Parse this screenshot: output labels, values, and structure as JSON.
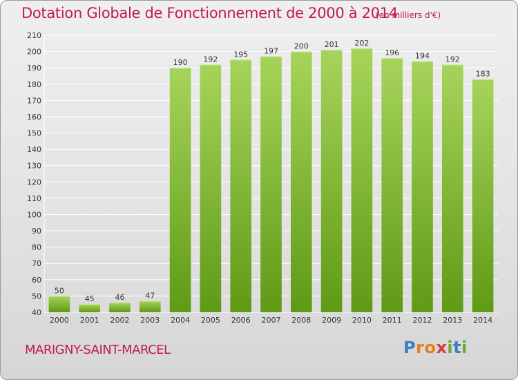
{
  "title": "Dotation Globale de Fonctionnement de 2000 à 2014",
  "subtitle": "(en milliers d'€)",
  "commune": "MARIGNY-SAINT-MARCEL",
  "logo": {
    "text": "Proxiti",
    "letters": [
      "P",
      "r",
      "o",
      "x",
      "i",
      "t",
      "i"
    ],
    "colors": [
      "#3a7fc1",
      "#e87d1e",
      "#e87d1e",
      "#d93a3a",
      "#6aa535",
      "#3a7fc1",
      "#6aa535"
    ]
  },
  "colors": {
    "title": "#c0185d",
    "bar_top": "#a6d45a",
    "bar_bottom": "#5f9a16",
    "grid": "#ffffff",
    "axis_text": "#333333"
  },
  "chart_data": {
    "type": "bar",
    "categories": [
      "2000",
      "2001",
      "2002",
      "2003",
      "2004",
      "2005",
      "2006",
      "2007",
      "2008",
      "2009",
      "2010",
      "2011",
      "2012",
      "2013",
      "2014"
    ],
    "values": [
      50,
      45,
      46,
      47,
      190,
      192,
      195,
      197,
      200,
      201,
      202,
      196,
      194,
      192,
      183
    ],
    "ylim": [
      40,
      210
    ],
    "yticks": [
      40,
      50,
      60,
      70,
      80,
      90,
      100,
      110,
      120,
      130,
      140,
      150,
      160,
      170,
      180,
      190,
      200,
      210
    ],
    "grid": true,
    "data_labels": true
  }
}
